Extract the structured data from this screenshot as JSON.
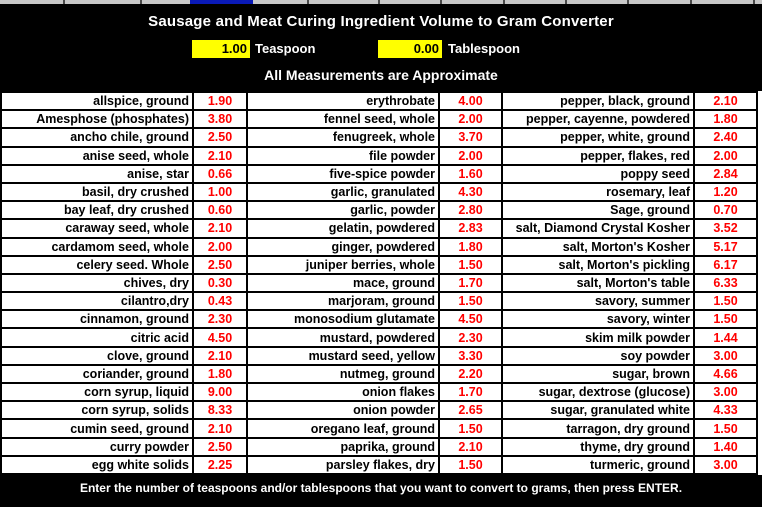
{
  "header": {
    "title": "Sausage and Meat Curing Ingredient Volume to Gram Converter",
    "inputs": {
      "teaspoon": {
        "value": "1.00",
        "label": "Teaspoon"
      },
      "tablespoon": {
        "value": "0.00",
        "label": "Tablespoon"
      }
    },
    "subtitle": "All Measurements are Approximate"
  },
  "table": {
    "columns": [
      {
        "entries": [
          {
            "name": "allspice, ground",
            "value": "1.90"
          },
          {
            "name": "Amesphose (phosphates)",
            "value": "3.80"
          },
          {
            "name": "ancho chile, ground",
            "value": "2.50"
          },
          {
            "name": "anise seed, whole",
            "value": "2.10"
          },
          {
            "name": "anise, star",
            "value": "0.66"
          },
          {
            "name": "basil, dry crushed",
            "value": "1.00"
          },
          {
            "name": "bay leaf, dry crushed",
            "value": "0.60"
          },
          {
            "name": "caraway seed, whole",
            "value": "2.10"
          },
          {
            "name": "cardamom seed, whole",
            "value": "2.00"
          },
          {
            "name": "celery seed. Whole",
            "value": "2.50"
          },
          {
            "name": "chives, dry",
            "value": "0.30"
          },
          {
            "name": "cilantro,dry",
            "value": "0.43"
          },
          {
            "name": "cinnamon, ground",
            "value": "2.30"
          },
          {
            "name": "citric acid",
            "value": "4.50"
          },
          {
            "name": "clove, ground",
            "value": "2.10"
          },
          {
            "name": "coriander, ground",
            "value": "1.80"
          },
          {
            "name": "corn syrup, liquid",
            "value": "9.00"
          },
          {
            "name": "corn syrup, solids",
            "value": "8.33"
          },
          {
            "name": "cumin seed, ground",
            "value": "2.10"
          },
          {
            "name": "curry powder",
            "value": "2.50"
          },
          {
            "name": "egg white solids",
            "value": "2.25"
          }
        ]
      },
      {
        "entries": [
          {
            "name": "erythrobate",
            "value": "4.00"
          },
          {
            "name": "fennel seed, whole",
            "value": "2.00"
          },
          {
            "name": "fenugreek, whole",
            "value": "3.70"
          },
          {
            "name": "file powder",
            "value": "2.00"
          },
          {
            "name": "five-spice powder",
            "value": "1.60"
          },
          {
            "name": "garlic, granulated",
            "value": "4.30"
          },
          {
            "name": "garlic, powder",
            "value": "2.80"
          },
          {
            "name": "gelatin, powdered",
            "value": "2.83"
          },
          {
            "name": "ginger, powdered",
            "value": "1.80"
          },
          {
            "name": "juniper berries, whole",
            "value": "1.50"
          },
          {
            "name": "mace, ground",
            "value": "1.70"
          },
          {
            "name": "marjoram, ground",
            "value": "1.50"
          },
          {
            "name": "monosodium glutamate",
            "value": "4.50"
          },
          {
            "name": "mustard, powdered",
            "value": "2.30"
          },
          {
            "name": "mustard seed, yellow",
            "value": "3.30"
          },
          {
            "name": "nutmeg, ground",
            "value": "2.20"
          },
          {
            "name": "onion flakes",
            "value": "1.70"
          },
          {
            "name": "onion powder",
            "value": "2.65"
          },
          {
            "name": "oregano leaf, ground",
            "value": "1.50"
          },
          {
            "name": "paprika, ground",
            "value": "2.10"
          },
          {
            "name": "parsley flakes, dry",
            "value": "1.50"
          }
        ]
      },
      {
        "entries": [
          {
            "name": "pepper, black, ground",
            "value": "2.10"
          },
          {
            "name": "pepper, cayenne, powdered",
            "value": "1.80"
          },
          {
            "name": "pepper, white, ground",
            "value": "2.40"
          },
          {
            "name": "pepper, flakes, red",
            "value": "2.00"
          },
          {
            "name": "poppy seed",
            "value": "2.84"
          },
          {
            "name": "rosemary, leaf",
            "value": "1.20"
          },
          {
            "name": "Sage, ground",
            "value": "0.70"
          },
          {
            "name": "salt, Diamond Crystal Kosher",
            "value": "3.52"
          },
          {
            "name": "salt, Morton's Kosher",
            "value": "5.17"
          },
          {
            "name": "salt, Morton's pickling",
            "value": "6.17"
          },
          {
            "name": "salt, Morton's table",
            "value": "6.33"
          },
          {
            "name": "savory, summer",
            "value": "1.50"
          },
          {
            "name": "savory, winter",
            "value": "1.50"
          },
          {
            "name": "skim milk powder",
            "value": "1.44"
          },
          {
            "name": "soy powder",
            "value": "3.00"
          },
          {
            "name": "sugar, brown",
            "value": "4.66"
          },
          {
            "name": "sugar, dextrose (glucose)",
            "value": "3.00"
          },
          {
            "name": "sugar, granulated white",
            "value": "4.33"
          },
          {
            "name": "tarragon, dry ground",
            "value": "1.50"
          },
          {
            "name": "thyme, dry ground",
            "value": "1.40"
          },
          {
            "name": "turmeric, ground",
            "value": "3.00"
          }
        ]
      }
    ]
  },
  "footer": {
    "instruction": "Enter the number of teaspoons and/or tablespoons that you want to convert to grams, then press ENTER."
  },
  "colors": {
    "value_text": "#ff0000",
    "input_bg": "#ffff00",
    "band_bg": "#000000",
    "selection_blue": "#0a1ab8"
  }
}
